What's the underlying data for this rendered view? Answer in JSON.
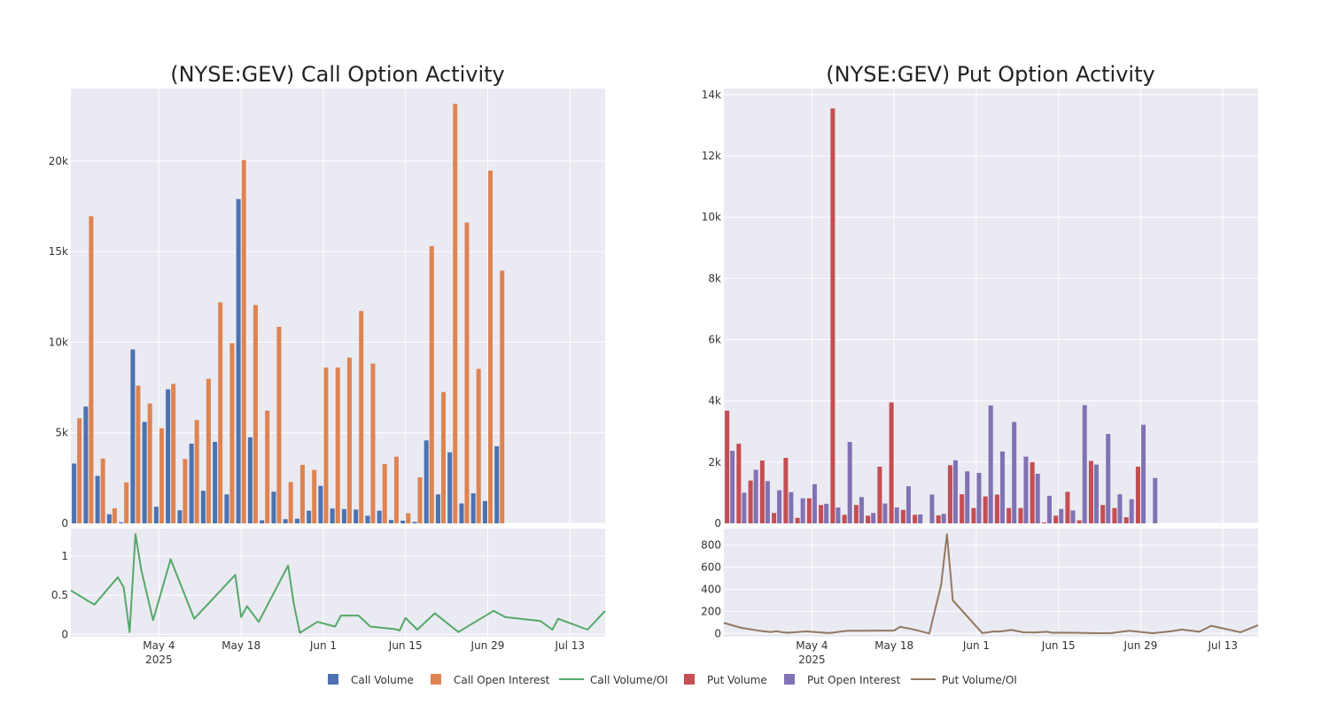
{
  "colors": {
    "call_volume": "#4c72b0",
    "call_open_interest": "#dd8452",
    "call_ratio": "#55a868",
    "put_volume": "#c44e52",
    "put_open_interest": "#8172b3",
    "put_ratio": "#937860",
    "plot_bg": "#eaeaf2",
    "grid": "#ffffff"
  },
  "legend": {
    "placement": "bottom-center",
    "items": [
      {
        "label": "Call Volume",
        "kind": "square",
        "color_key": "call_volume"
      },
      {
        "label": "Call Open Interest",
        "kind": "square",
        "color_key": "call_open_interest"
      },
      {
        "label": "Call Volume/OI",
        "kind": "line",
        "color_key": "call_ratio"
      },
      {
        "label": "Put Volume",
        "kind": "square",
        "color_key": "put_volume"
      },
      {
        "label": "Put Open Interest",
        "kind": "square",
        "color_key": "put_open_interest"
      },
      {
        "label": "Put Volume/OI",
        "kind": "line",
        "color_key": "put_ratio"
      }
    ]
  },
  "chart_data": [
    {
      "type": "bar",
      "title": "(NYSE:GEV) Call Option Activity",
      "x_range": [
        "2025-04-19",
        "2025-07-19"
      ],
      "x_ticks": [
        {
          "date": "2025-05-04",
          "label": "May 4",
          "sublabel": "2025"
        },
        {
          "date": "2025-05-18",
          "label": "May 18"
        },
        {
          "date": "2025-06-01",
          "label": "Jun 1"
        },
        {
          "date": "2025-06-15",
          "label": "Jun 15"
        },
        {
          "date": "2025-06-29",
          "label": "Jun 29"
        },
        {
          "date": "2025-07-13",
          "label": "Jul 13"
        }
      ],
      "y_range": [
        0,
        24000
      ],
      "y_ticks": [
        {
          "v": 0,
          "label": "0"
        },
        {
          "v": 5000,
          "label": "5k"
        },
        {
          "v": 10000,
          "label": "10k"
        },
        {
          "v": 15000,
          "label": "15k"
        },
        {
          "v": 20000,
          "label": "20k"
        }
      ],
      "ratio_y_range": [
        -0.03,
        1.35
      ],
      "ratio_y_ticks": [
        {
          "v": 0,
          "label": "0"
        },
        {
          "v": 0.5,
          "label": "0.5"
        },
        {
          "v": 1,
          "label": "1"
        }
      ],
      "dates": [
        "2025-04-20",
        "2025-04-22",
        "2025-04-24",
        "2025-04-26",
        "2025-04-28",
        "2025-04-30",
        "2025-05-02",
        "2025-05-04",
        "2025-05-06",
        "2025-05-08",
        "2025-05-10",
        "2025-05-12",
        "2025-05-14",
        "2025-05-16",
        "2025-05-18",
        "2025-05-20",
        "2025-05-22",
        "2025-05-24",
        "2025-05-26",
        "2025-05-28",
        "2025-05-30",
        "2025-06-01",
        "2025-06-03",
        "2025-06-05",
        "2025-06-07",
        "2025-06-09",
        "2025-06-11",
        "2025-06-13",
        "2025-06-15",
        "2025-06-17",
        "2025-06-19",
        "2025-06-21",
        "2025-06-23",
        "2025-06-25",
        "2025-06-27",
        "2025-06-29",
        "2025-07-01",
        "2025-07-03",
        "2025-07-05",
        "2025-07-07",
        "2025-07-09",
        "2025-07-11",
        "2025-07-13",
        "2025-07-15",
        "2025-07-17"
      ],
      "series": [
        {
          "name": "Call Volume",
          "color_key": "call_volume",
          "values": [
            3300,
            6450,
            2620,
            500,
            60,
            9600,
            5600,
            920,
            7400,
            720,
            4400,
            1800,
            4500,
            1600,
            17900,
            4750,
            170,
            1750,
            230,
            260,
            700,
            2070,
            820,
            790,
            760,
            420,
            700,
            190,
            150,
            80,
            4580,
            1600,
            3920,
            1100,
            1660,
            1230,
            4260,
            0,
            0,
            0,
            0,
            0,
            0,
            0,
            0
          ]
        },
        {
          "name": "Call Open Interest",
          "color_key": "call_open_interest",
          "values": [
            5800,
            16950,
            3580,
            830,
            2260,
            7600,
            6620,
            5250,
            7700,
            3560,
            5700,
            7980,
            12200,
            9950,
            20050,
            12050,
            6220,
            10850,
            2280,
            3230,
            2950,
            8600,
            8600,
            9150,
            11720,
            8820,
            3270,
            3680,
            560,
            2540,
            15300,
            7250,
            23150,
            16600,
            8530,
            19470,
            13950,
            0,
            0,
            0,
            0,
            0,
            0,
            0,
            0
          ]
        },
        {
          "name": "Call Volume/OI",
          "color_key": "call_ratio",
          "type": "line",
          "x": [
            "2025-04-19",
            "2025-04-23",
            "2025-04-27",
            "2025-04-28",
            "2025-04-29",
            "2025-04-30",
            "2025-05-01",
            "2025-05-03",
            "2025-05-06",
            "2025-05-10",
            "2025-05-17",
            "2025-05-18",
            "2025-05-19",
            "2025-05-21",
            "2025-05-26",
            "2025-05-27",
            "2025-05-28",
            "2025-05-31",
            "2025-06-03",
            "2025-06-04",
            "2025-06-07",
            "2025-06-09",
            "2025-06-13",
            "2025-06-14",
            "2025-06-15",
            "2025-06-17",
            "2025-06-20",
            "2025-06-24",
            "2025-06-30",
            "2025-07-02",
            "2025-07-08",
            "2025-07-10",
            "2025-07-11",
            "2025-07-16",
            "2025-07-19"
          ],
          "values": [
            0.56,
            0.38,
            0.73,
            0.6,
            0.03,
            1.28,
            0.82,
            0.18,
            0.96,
            0.2,
            0.76,
            0.22,
            0.36,
            0.16,
            0.88,
            0.38,
            0.02,
            0.16,
            0.1,
            0.24,
            0.24,
            0.1,
            0.07,
            0.05,
            0.21,
            0.06,
            0.27,
            0.03,
            0.3,
            0.22,
            0.17,
            0.06,
            0.2,
            0.06,
            0.3
          ]
        }
      ]
    },
    {
      "type": "bar",
      "title": "(NYSE:GEV) Put Option Activity",
      "x_range": [
        "2025-04-19",
        "2025-07-19"
      ],
      "x_ticks": [
        {
          "date": "2025-05-04",
          "label": "May 4",
          "sublabel": "2025"
        },
        {
          "date": "2025-05-18",
          "label": "May 18"
        },
        {
          "date": "2025-06-01",
          "label": "Jun 1"
        },
        {
          "date": "2025-06-15",
          "label": "Jun 15"
        },
        {
          "date": "2025-06-29",
          "label": "Jun 29"
        },
        {
          "date": "2025-07-13",
          "label": "Jul 13"
        }
      ],
      "y_range": [
        0,
        14200
      ],
      "y_ticks": [
        {
          "v": 0,
          "label": "0"
        },
        {
          "v": 2000,
          "label": "2k"
        },
        {
          "v": 4000,
          "label": "4k"
        },
        {
          "v": 6000,
          "label": "6k"
        },
        {
          "v": 8000,
          "label": "8k"
        },
        {
          "v": 10000,
          "label": "10k"
        },
        {
          "v": 12000,
          "label": "12k"
        },
        {
          "v": 14000,
          "label": "14k"
        }
      ],
      "ratio_y_range": [
        -30,
        950
      ],
      "ratio_y_ticks": [
        {
          "v": 0,
          "label": "0"
        },
        {
          "v": 200,
          "label": "200"
        },
        {
          "v": 400,
          "label": "400"
        },
        {
          "v": 600,
          "label": "600"
        },
        {
          "v": 800,
          "label": "800"
        }
      ],
      "dates": [
        "2025-04-20",
        "2025-04-22",
        "2025-04-24",
        "2025-04-26",
        "2025-04-28",
        "2025-04-30",
        "2025-05-02",
        "2025-05-04",
        "2025-05-06",
        "2025-05-08",
        "2025-05-10",
        "2025-05-12",
        "2025-05-14",
        "2025-05-16",
        "2025-05-18",
        "2025-05-20",
        "2025-05-22",
        "2025-05-24",
        "2025-05-26",
        "2025-05-28",
        "2025-05-30",
        "2025-06-01",
        "2025-06-03",
        "2025-06-05",
        "2025-06-07",
        "2025-06-09",
        "2025-06-11",
        "2025-06-13",
        "2025-06-15",
        "2025-06-17",
        "2025-06-19",
        "2025-06-21",
        "2025-06-23",
        "2025-06-25",
        "2025-06-27",
        "2025-06-29",
        "2025-07-01",
        "2025-07-03",
        "2025-07-05",
        "2025-07-07",
        "2025-07-09",
        "2025-07-11",
        "2025-07-13",
        "2025-07-15",
        "2025-07-17"
      ],
      "series": [
        {
          "name": "Put Volume",
          "color_key": "put_volume",
          "values": [
            3680,
            2600,
            1400,
            2050,
            340,
            2140,
            180,
            820,
            600,
            13550,
            280,
            600,
            250,
            1850,
            3950,
            440,
            280,
            0,
            260,
            1900,
            950,
            500,
            880,
            940,
            500,
            500,
            2000,
            30,
            250,
            1030,
            100,
            2040,
            600,
            500,
            200,
            1850,
            0,
            0,
            0,
            0,
            0,
            0,
            0,
            0,
            0
          ]
        },
        {
          "name": "Put Open Interest",
          "color_key": "put_open_interest",
          "values": [
            2370,
            1000,
            1750,
            1380,
            1080,
            1020,
            820,
            1280,
            640,
            520,
            2660,
            860,
            340,
            650,
            520,
            1210,
            290,
            940,
            310,
            2060,
            1700,
            1650,
            3850,
            2350,
            3310,
            2180,
            1620,
            900,
            470,
            420,
            3860,
            1920,
            2920,
            950,
            790,
            3220,
            1480,
            0,
            0,
            0,
            0,
            0,
            0,
            0,
            0
          ]
        },
        {
          "name": "Put Volume/OI",
          "color_key": "put_ratio",
          "type": "line",
          "x": [
            "2025-04-19",
            "2025-04-22",
            "2025-04-25",
            "2025-04-27",
            "2025-04-28",
            "2025-04-29",
            "2025-04-30",
            "2025-05-03",
            "2025-05-07",
            "2025-05-10",
            "2025-05-12",
            "2025-05-18",
            "2025-05-19",
            "2025-05-21",
            "2025-05-24",
            "2025-05-26",
            "2025-05-27",
            "2025-05-28",
            "2025-06-02",
            "2025-06-03",
            "2025-06-04",
            "2025-06-05",
            "2025-06-07",
            "2025-06-09",
            "2025-06-11",
            "2025-06-13",
            "2025-06-14",
            "2025-06-15",
            "2025-06-18",
            "2025-06-21",
            "2025-06-24",
            "2025-06-27",
            "2025-07-01",
            "2025-07-04",
            "2025-07-06",
            "2025-07-07",
            "2025-07-09",
            "2025-07-11",
            "2025-07-16",
            "2025-07-19"
          ],
          "values": [
            95,
            50,
            25,
            12,
            20,
            10,
            6,
            18,
            3,
            25,
            25,
            26,
            60,
            40,
            0,
            440,
            900,
            300,
            4,
            10,
            18,
            16,
            32,
            10,
            8,
            15,
            5,
            7,
            6,
            2,
            3,
            24,
            2,
            18,
            35,
            28,
            15,
            70,
            10,
            75
          ]
        }
      ]
    }
  ]
}
